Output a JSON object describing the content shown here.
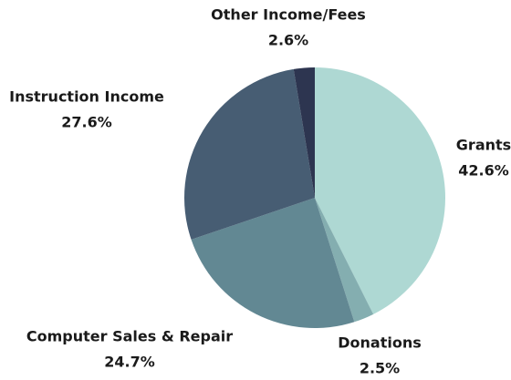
{
  "chart_data": {
    "type": "pie",
    "categories": [
      "Grants",
      "Donations",
      "Computer Sales & Repair",
      "Instruction Income",
      "Other Income/Fees"
    ],
    "values": [
      42.6,
      2.5,
      24.7,
      27.6,
      2.6
    ],
    "value_labels": [
      "42.6%",
      "2.5%",
      "24.7%",
      "27.6%",
      "2.6%"
    ],
    "colors": [
      "#aed8d3",
      "#84aeb0",
      "#628893",
      "#475d73",
      "#2d3550"
    ]
  }
}
